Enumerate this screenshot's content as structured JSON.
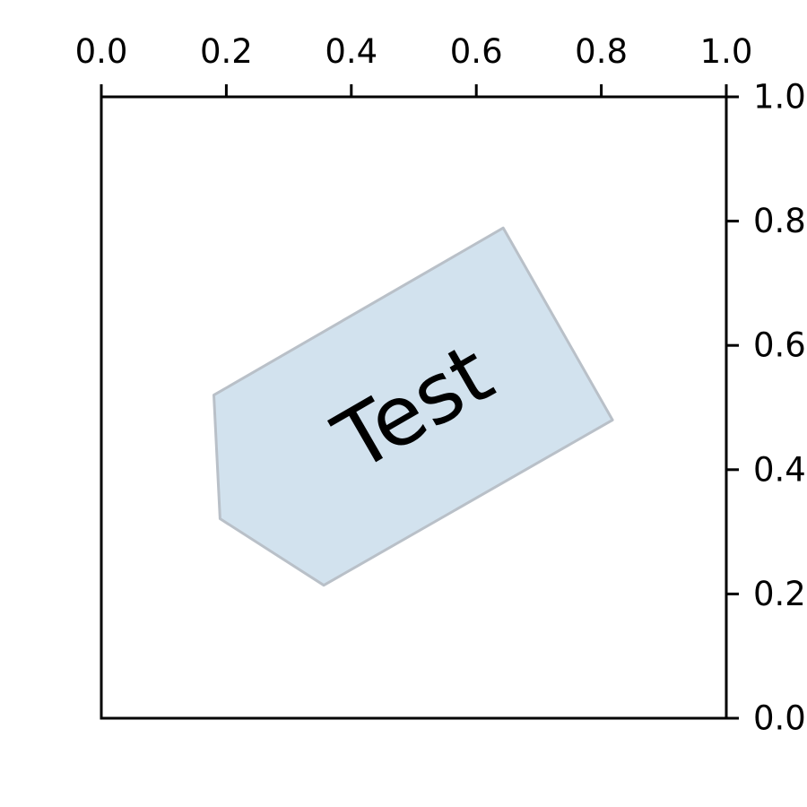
{
  "chart_data": {
    "type": "annotation",
    "xlim": [
      0.0,
      1.0
    ],
    "ylim": [
      0.0,
      1.0
    ],
    "x_ticks": [
      "0.0",
      "0.2",
      "0.4",
      "0.6",
      "0.8",
      "1.0"
    ],
    "y_ticks": [
      "0.0",
      "0.2",
      "0.4",
      "0.6",
      "0.8",
      "1.0"
    ],
    "x_axis_position": "top",
    "y_axis_position": "right",
    "grid": false,
    "annotation": {
      "text": "Test",
      "center": [
        0.5,
        0.5
      ],
      "rotation_degrees": 30,
      "fill_color": "#d2e2ee",
      "edge_color": "#b9c0c8",
      "text_color": "#000000",
      "polygon": [
        [
          0.643,
          0.789
        ],
        [
          0.818,
          0.48
        ],
        [
          0.356,
          0.214
        ],
        [
          0.19,
          0.321
        ],
        [
          0.18,
          0.52
        ]
      ]
    }
  }
}
